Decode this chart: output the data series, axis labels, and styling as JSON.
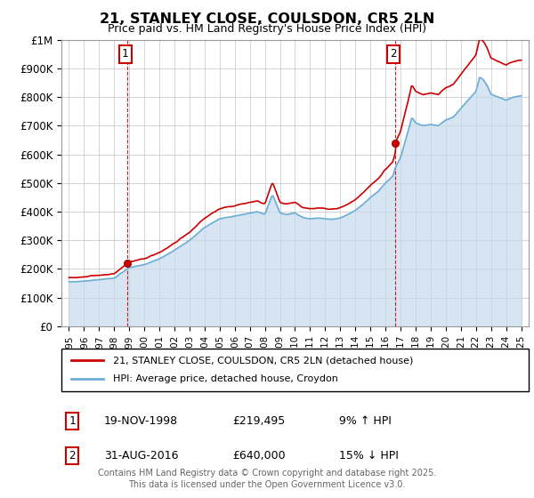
{
  "title": "21, STANLEY CLOSE, COULSDON, CR5 2LN",
  "subtitle": "Price paid vs. HM Land Registry's House Price Index (HPI)",
  "hpi_color": "#6baed6",
  "hpi_fill_color": "#c6dbef",
  "price_color": "#cc0000",
  "dashed_color": "#cc0000",
  "ylim": [
    0,
    1000000
  ],
  "yticks": [
    0,
    100000,
    200000,
    300000,
    400000,
    500000,
    600000,
    700000,
    800000,
    900000,
    1000000
  ],
  "ytick_labels": [
    "£0",
    "£100K",
    "£200K",
    "£300K",
    "£400K",
    "£500K",
    "£600K",
    "£700K",
    "£800K",
    "£900K",
    "£1M"
  ],
  "sale1_x": 1998.88,
  "sale1_y": 219495,
  "sale1_label": "1",
  "sale2_x": 2016.66,
  "sale2_y": 640000,
  "sale2_label": "2",
  "legend_line1": "21, STANLEY CLOSE, COULSDON, CR5 2LN (detached house)",
  "legend_line2": "HPI: Average price, detached house, Croydon",
  "footer": "Contains HM Land Registry data © Crown copyright and database right 2025.\nThis data is licensed under the Open Government Licence v3.0.",
  "xlim_start": 1994.5,
  "xlim_end": 2025.5,
  "sale1_date": "19-NOV-1998",
  "sale1_price_str": "£219,495",
  "sale1_hpi_str": "9% ↑ HPI",
  "sale2_date": "31-AUG-2016",
  "sale2_price_str": "£640,000",
  "sale2_hpi_str": "15% ↓ HPI"
}
